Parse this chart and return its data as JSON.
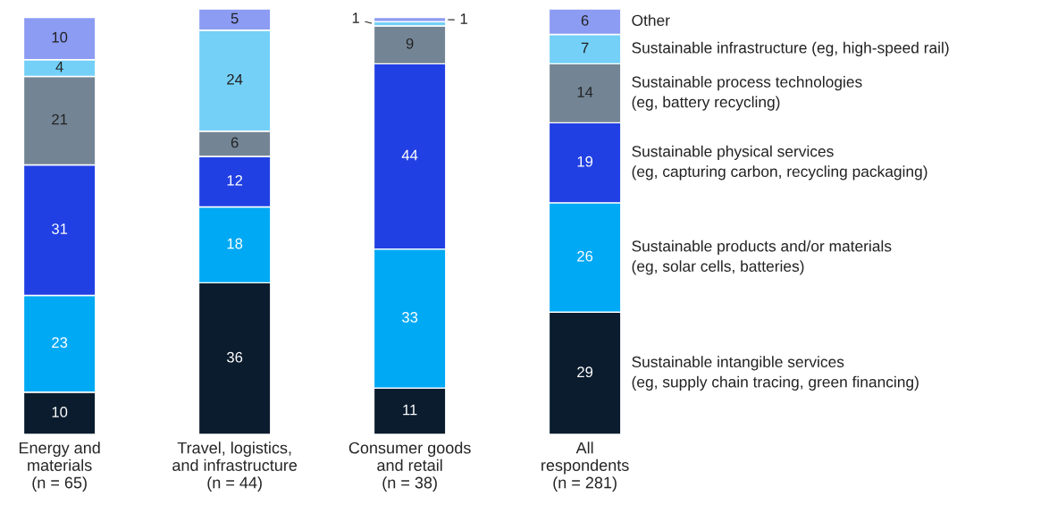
{
  "chart_data": {
    "type": "bar",
    "stacked": true,
    "data_labels": true,
    "categories": [
      "Energy and\nmaterials\n(n = 65)",
      "Travel, logistics,\nand infrastructure\n(n = 44)",
      "Consumer goods\nand retail\n(n = 38)",
      "All\nrespondents\n(n = 281)"
    ],
    "series": [
      {
        "name": "Sustainable intangible services\n(eg, supply chain tracing, green financing)",
        "color": "#0a1c2e",
        "values": [
          10,
          36,
          11,
          29
        ]
      },
      {
        "name": "Sustainable products and/or materials\n(eg, solar cells, batteries)",
        "color": "#00a9f4",
        "values": [
          23,
          18,
          33,
          26
        ]
      },
      {
        "name": "Sustainable physical services\n(eg, capturing carbon, recycling packaging)",
        "color": "#2140e3",
        "values": [
          31,
          12,
          44,
          19
        ]
      },
      {
        "name": "Sustainable process technologies\n(eg, battery recycling)",
        "color": "#738595",
        "values": [
          21,
          6,
          9,
          14
        ]
      },
      {
        "name": "Sustainable infrastructure (eg, high-speed rail)",
        "color": "#74d0f7",
        "values": [
          4,
          24,
          1,
          7
        ]
      },
      {
        "name": "Other",
        "color": "#8c9cf3",
        "values": [
          10,
          5,
          1,
          6
        ]
      }
    ]
  }
}
